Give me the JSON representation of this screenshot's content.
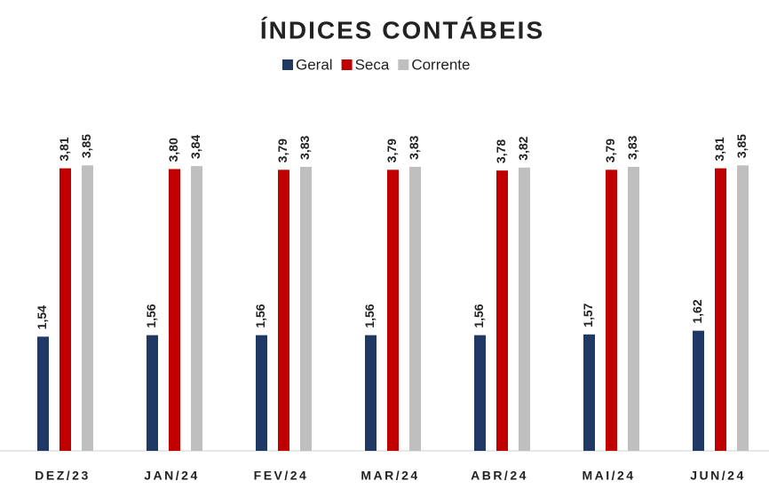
{
  "chart_data": {
    "type": "bar",
    "title": "ÍNDICES CONTÁBEIS",
    "categories": [
      "DEZ/23",
      "JAN/24",
      "FEV/24",
      "MAR/24",
      "ABR/24",
      "MAI/24",
      "JUN/24"
    ],
    "series": [
      {
        "name": "Geral",
        "color": "#203864",
        "values": [
          1.54,
          1.56,
          1.56,
          1.56,
          1.56,
          1.57,
          1.62
        ],
        "value_labels": [
          "1,54",
          "1,56",
          "1,56",
          "1,56",
          "1,56",
          "1,57",
          "1,62"
        ]
      },
      {
        "name": "Seca",
        "color": "#c00000",
        "values": [
          3.81,
          3.8,
          3.79,
          3.79,
          3.78,
          3.79,
          3.81
        ],
        "value_labels": [
          "3,81",
          "3,80",
          "3,79",
          "3,79",
          "3,78",
          "3,79",
          "3,81"
        ]
      },
      {
        "name": "Corrente",
        "color": "#bfbfbf",
        "values": [
          3.85,
          3.84,
          3.83,
          3.83,
          3.82,
          3.83,
          3.85
        ],
        "value_labels": [
          "3,85",
          "3,84",
          "3,83",
          "3,83",
          "3,82",
          "3,83",
          "3,85"
        ]
      }
    ],
    "ylim": [
      0,
      4.5
    ]
  }
}
